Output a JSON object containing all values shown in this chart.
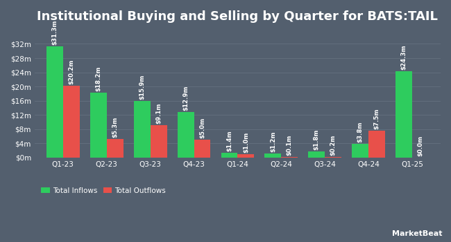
{
  "title": "Institutional Buying and Selling by Quarter for BATS:TAIL",
  "quarters": [
    "Q1-23",
    "Q2-23",
    "Q3-23",
    "Q4-23",
    "Q1-24",
    "Q2-24",
    "Q3-24",
    "Q4-24",
    "Q1-25"
  ],
  "inflows": [
    31.3,
    18.2,
    15.9,
    12.9,
    1.4,
    1.2,
    1.8,
    3.8,
    24.3
  ],
  "outflows": [
    20.2,
    5.3,
    9.1,
    5.0,
    1.0,
    0.1,
    0.2,
    7.5,
    0.0
  ],
  "inflow_labels": [
    "$31.3m",
    "$18.2m",
    "$15.9m",
    "$12.9m",
    "$1.4m",
    "$1.2m",
    "$1.8m",
    "$3.8m",
    "$24.3m"
  ],
  "outflow_labels": [
    "$20.2m",
    "$5.3m",
    "$9.1m",
    "$5.0m",
    "$1.0m",
    "$0.1m",
    "$0.2m",
    "$7.5m",
    "$0.0m"
  ],
  "inflow_color": "#2ecc5e",
  "outflow_color": "#e8504a",
  "background_color": "#535f6e",
  "plot_bg_color": "#535f6e",
  "text_color": "#ffffff",
  "grid_color": "#626e7d",
  "yticks": [
    0,
    4,
    8,
    12,
    16,
    20,
    24,
    28,
    32
  ],
  "ytick_labels": [
    "$0m",
    "$4m",
    "$8m",
    "$12m",
    "$16m",
    "$20m",
    "$24m",
    "$28m",
    "$32m"
  ],
  "ylim": [
    0,
    36
  ],
  "bar_width": 0.38,
  "title_fontsize": 13,
  "label_fontsize": 6.2,
  "tick_fontsize": 7.5,
  "legend_fontsize": 7.5
}
